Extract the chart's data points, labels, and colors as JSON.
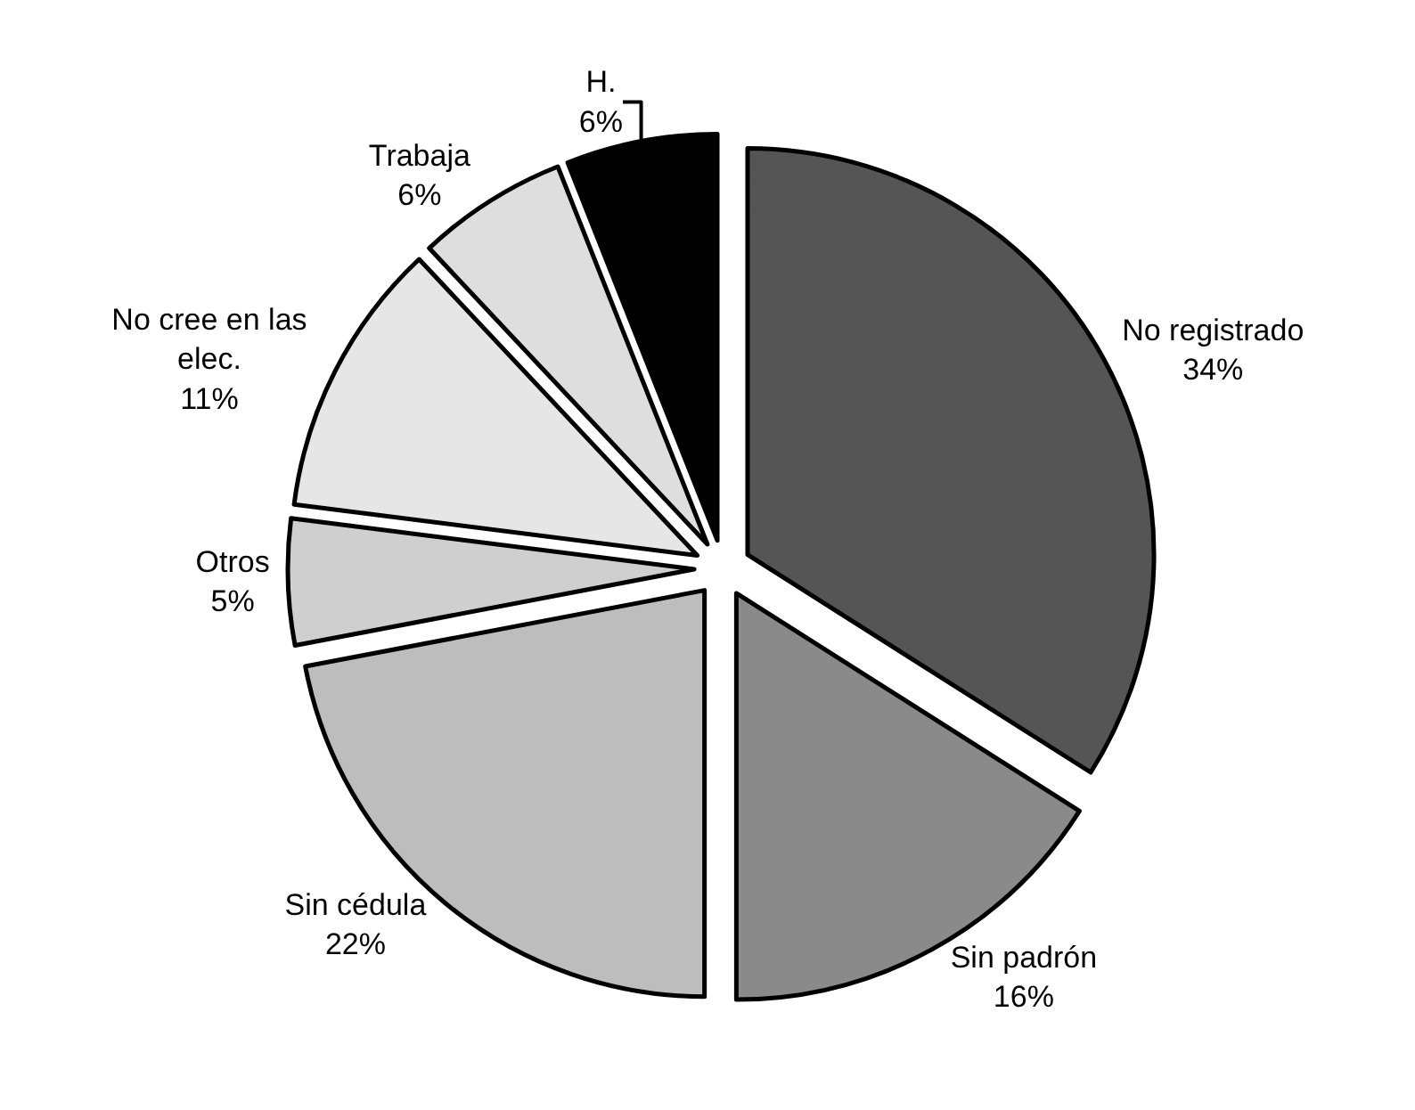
{
  "chart_data": {
    "type": "pie",
    "categories": [
      "No registrado",
      "Sin padrón",
      "Sin cédula",
      "Otros",
      "No cree en las elec.",
      "Trabaja",
      "H."
    ],
    "values": [
      34,
      16,
      22,
      5,
      11,
      6,
      6
    ],
    "value_labels": [
      "34%",
      "16%",
      "22%",
      "5%",
      "11%",
      "6%",
      "6%"
    ],
    "colors": [
      "#555555",
      "#8a8a8a",
      "#bdbdbd",
      "#cfcfcf",
      "#e6e6e6",
      "#dedede",
      "#000000"
    ],
    "legend": false
  }
}
